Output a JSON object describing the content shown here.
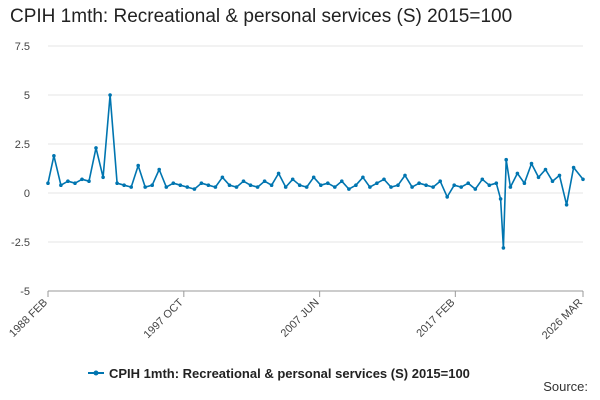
{
  "chart_data": {
    "type": "line",
    "title": "CPIH 1mth: Recreational & personal services (S) 2015=100",
    "xlabel": "",
    "ylabel": "",
    "ylim": [
      -5,
      7.5
    ],
    "y_ticks": [
      "7.5",
      "5",
      "2.5",
      "0",
      "-2.5",
      "-5"
    ],
    "y_tick_values": [
      7.5,
      5,
      2.5,
      0,
      -2.5,
      -5
    ],
    "x_tick_labels": [
      "1988 FEB",
      "1997 OCT",
      "2007 JUN",
      "2017 FEB",
      "2026 MAR"
    ],
    "x_tick_years": [
      1988.08,
      1997.75,
      2007.42,
      2017.08,
      2026.17
    ],
    "x_range": [
      1988.08,
      2026.17
    ],
    "series": [
      {
        "name": "CPIH 1mth: Recreational & personal services (S) 2015=100",
        "color": "#0075b0",
        "x": [
          1988.08,
          1988.5,
          1989.0,
          1989.5,
          1990.0,
          1990.5,
          1991.0,
          1991.5,
          1992.0,
          1992.5,
          1993.0,
          1993.5,
          1994.0,
          1994.5,
          1995.0,
          1995.5,
          1996.0,
          1996.5,
          1997.0,
          1997.5,
          1998.0,
          1998.5,
          1999.0,
          1999.5,
          2000.0,
          2000.5,
          2001.0,
          2001.5,
          2002.0,
          2002.5,
          2003.0,
          2003.5,
          2004.0,
          2004.5,
          2005.0,
          2005.5,
          2006.0,
          2006.5,
          2007.0,
          2007.5,
          2008.0,
          2008.5,
          2009.0,
          2009.5,
          2010.0,
          2010.5,
          2011.0,
          2011.5,
          2012.0,
          2012.5,
          2013.0,
          2013.5,
          2014.0,
          2014.5,
          2015.0,
          2015.5,
          2016.0,
          2016.5,
          2017.0,
          2017.5,
          2018.0,
          2018.5,
          2019.0,
          2019.5,
          2020.0,
          2020.3,
          2020.5,
          2020.7,
          2021.0,
          2021.5,
          2022.0,
          2022.5,
          2023.0,
          2023.5,
          2024.0,
          2024.5,
          2025.0,
          2025.5,
          2026.17
        ],
        "values": [
          0.5,
          1.9,
          0.4,
          0.6,
          0.5,
          0.7,
          0.6,
          2.3,
          0.8,
          5.0,
          0.5,
          0.4,
          0.3,
          1.4,
          0.3,
          0.4,
          1.2,
          0.3,
          0.5,
          0.4,
          0.3,
          0.2,
          0.5,
          0.4,
          0.3,
          0.8,
          0.4,
          0.3,
          0.6,
          0.4,
          0.3,
          0.6,
          0.4,
          1.0,
          0.3,
          0.7,
          0.4,
          0.3,
          0.8,
          0.4,
          0.5,
          0.3,
          0.6,
          0.2,
          0.4,
          0.8,
          0.3,
          0.5,
          0.7,
          0.3,
          0.4,
          0.9,
          0.3,
          0.5,
          0.4,
          0.3,
          0.6,
          -0.2,
          0.4,
          0.3,
          0.5,
          0.2,
          0.7,
          0.4,
          0.5,
          -0.3,
          -2.8,
          1.7,
          0.3,
          1.0,
          0.5,
          1.5,
          0.8,
          1.2,
          0.6,
          0.9,
          -0.6,
          1.3,
          0.7
        ]
      }
    ],
    "legend": "bottom",
    "grid": true
  },
  "source_label": "Source:"
}
